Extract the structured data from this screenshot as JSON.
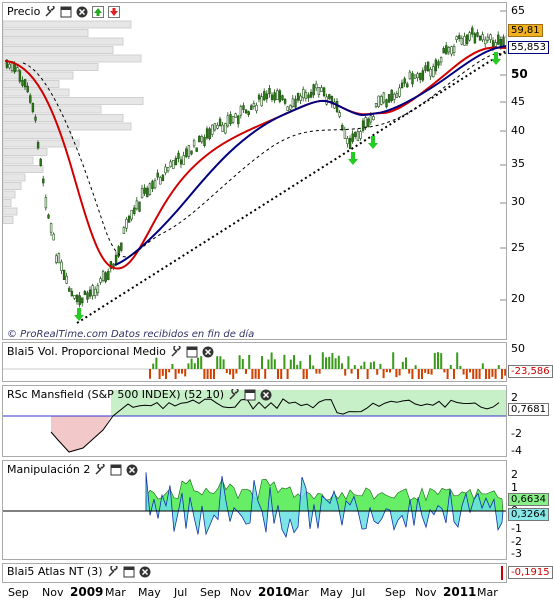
{
  "panels": {
    "price": {
      "title": "Precio",
      "watermark_brand": "© ProRealTime.com",
      "watermark_note": "Datos recibidos en fin de día",
      "y_ticks": [
        "65",
        "60",
        "55",
        "50",
        "45",
        "40",
        "35",
        "30",
        "25",
        "20"
      ],
      "last_price": "59,81",
      "ma_value": "55,853"
    },
    "volume": {
      "title": "Blai5 Vol. Proporcional Medio",
      "y_ticks": [
        "50",
        "0"
      ],
      "last_value": "-23,586"
    },
    "rsc": {
      "title": "RSc Mansfield (S&P 500 INDEX) (52 10)",
      "y_ticks": [
        "2",
        "0",
        "-2",
        "-4"
      ],
      "last_value": "0,7681"
    },
    "manip": {
      "title": "Manipulación 2",
      "y_ticks": [
        "2",
        "1",
        "0",
        "-1",
        "-2",
        "-3"
      ],
      "value_green": "0,6634",
      "value_blue": "0,3264"
    },
    "atlas": {
      "title": "Blai5 Atlas NT (3)",
      "last_value": "-0,1915"
    }
  },
  "x_axis": [
    {
      "label": "Sep",
      "year": false
    },
    {
      "label": "Nov",
      "year": false
    },
    {
      "label": "2009",
      "year": true
    },
    {
      "label": "Mar",
      "year": false
    },
    {
      "label": "May",
      "year": false
    },
    {
      "label": "Jul",
      "year": false
    },
    {
      "label": "Sep",
      "year": false
    },
    {
      "label": "Nov",
      "year": false
    },
    {
      "label": "2010",
      "year": true
    },
    {
      "label": "Mar",
      "year": false
    },
    {
      "label": "May",
      "year": false
    },
    {
      "label": "Jul",
      "year": false
    },
    {
      "label": "Sep",
      "year": false
    },
    {
      "label": "Nov",
      "year": false
    },
    {
      "label": "2011",
      "year": true
    },
    {
      "label": "Mar",
      "year": false
    }
  ],
  "icons": [
    "wrench-icon",
    "window-icon",
    "close-icon",
    "arrow-up-icon",
    "arrow-down-icon"
  ],
  "colors": {
    "ma_red": "#d00000",
    "ma_blue": "#000080",
    "candle_green": "#2e7d1a",
    "vol_green": "#3a9a1a",
    "vol_red": "#d04000",
    "rsc_green": "#c8f0c8",
    "rsc_red": "#f2c8c8",
    "manip_cyan": "#66e0e0",
    "manip_green": "#66ee66",
    "signal_green": "#22cc22"
  }
}
